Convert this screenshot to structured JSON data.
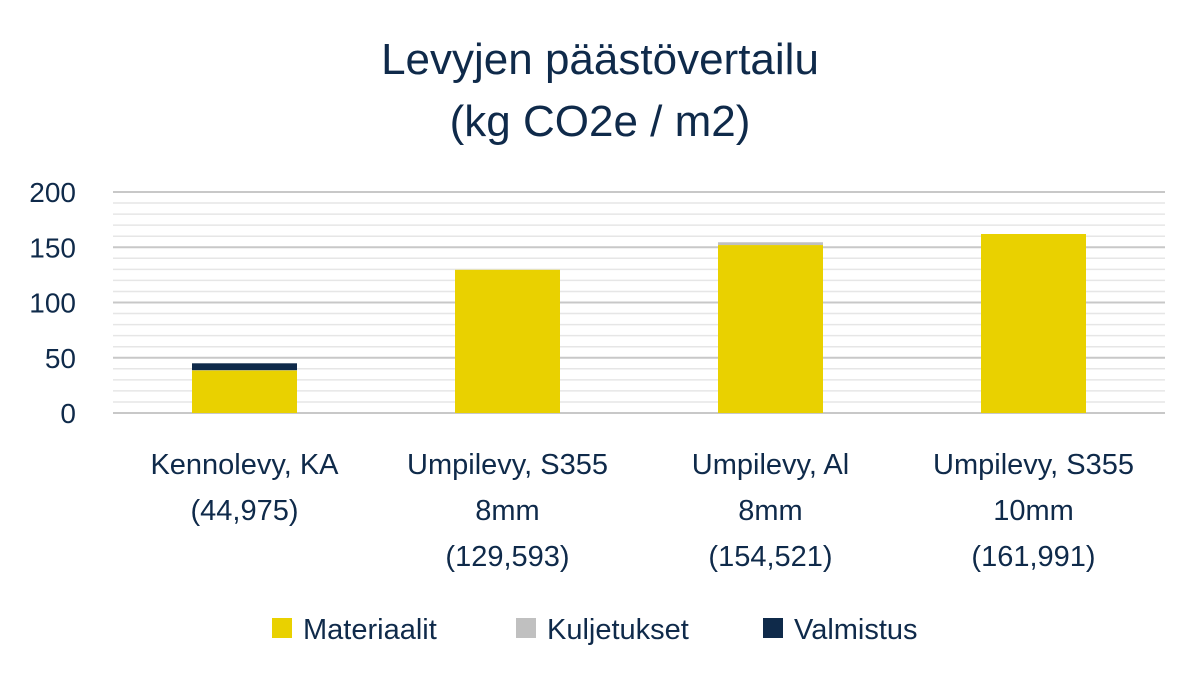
{
  "chart_data": {
    "type": "bar",
    "stacked": true,
    "title": "Levyjen päästövertailu",
    "subtitle": "(kg CO2e / m2)",
    "ylim": [
      0,
      200
    ],
    "yticks": [
      0,
      50,
      100,
      150,
      200
    ],
    "grid": true,
    "legend_position": "bottom",
    "categories": [
      [
        "Kennolevy, KA",
        "(44,975)"
      ],
      [
        "Umpilevy, S355",
        "8mm",
        "(129,593)"
      ],
      [
        "Umpilevy, Al",
        "8mm",
        "(154,521)"
      ],
      [
        "Umpilevy, S355",
        "10mm",
        "(161,991)"
      ]
    ],
    "series": [
      {
        "name": "Materiaalit",
        "color": "#e9d100",
        "values": [
          38.5,
          129.593,
          152.0,
          161.991
        ]
      },
      {
        "name": "Kuljetukset",
        "color": "#c0c0c0",
        "values": [
          0.3,
          0,
          2.521,
          0
        ]
      },
      {
        "name": "Valmistus",
        "color": "#0f2a4a",
        "values": [
          6.175,
          0,
          0,
          0
        ]
      }
    ]
  }
}
